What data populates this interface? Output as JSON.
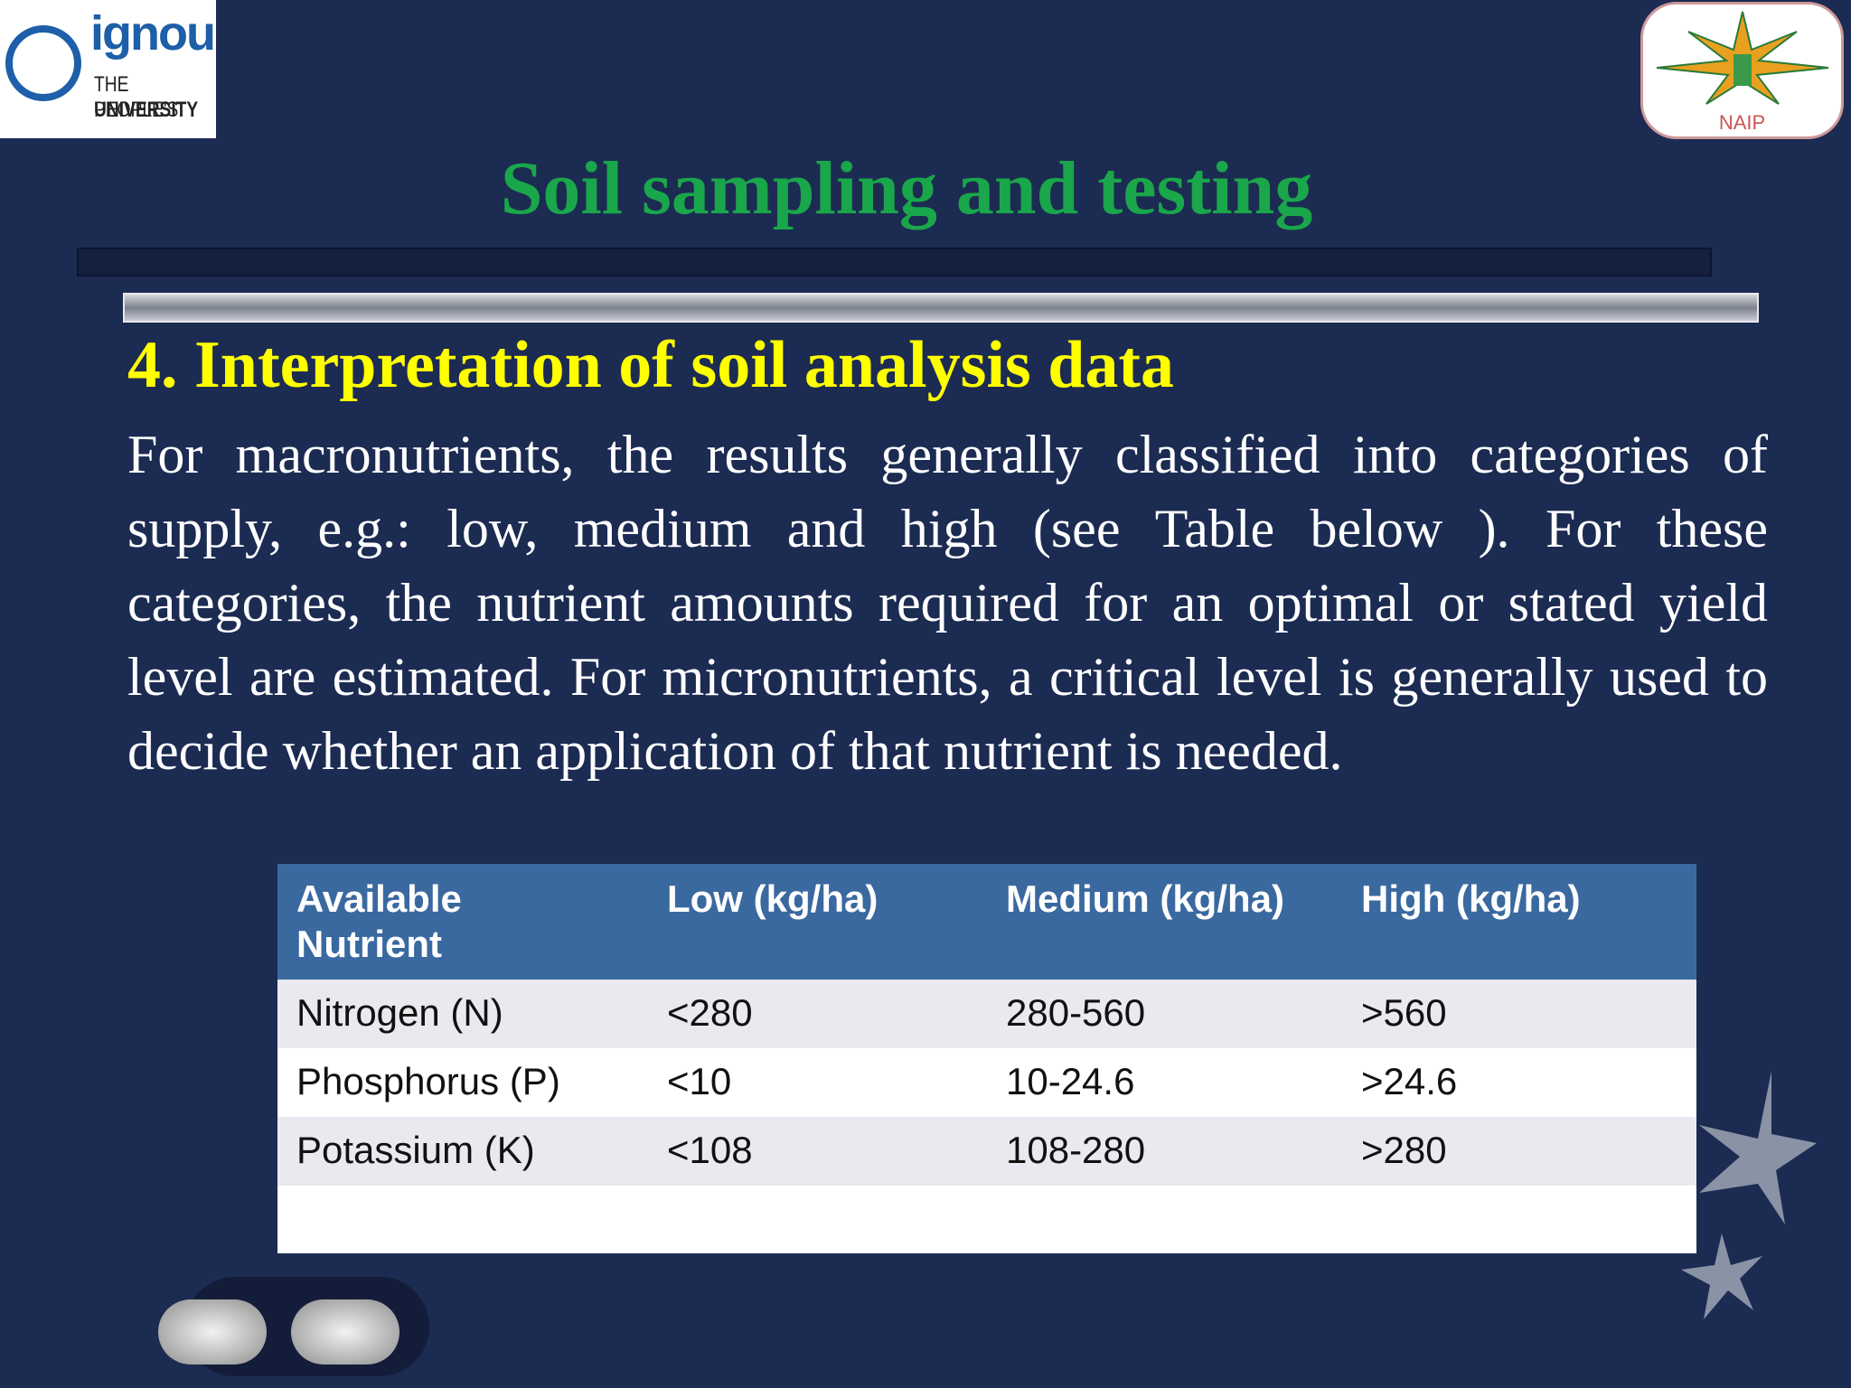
{
  "logos": {
    "left": {
      "name": "ignou",
      "line1": "THE PEOPLE'S",
      "line2": "UNIVERSITY"
    },
    "right": {
      "name": "NAIP"
    }
  },
  "header": {
    "title": "Soil sampling and testing"
  },
  "section": {
    "heading": "4. Interpretation of soil analysis data",
    "paragraph": "For macronutrients, the results generally classified into categories of supply, e.g.: low, medium and high (see Table below ). For these categories, the nutrient amounts required for an optimal or stated yield level are estimated. For micronutrients, a critical level is generally used to decide whether an application of that nutrient is needed."
  },
  "table": {
    "columns": [
      "Available Nutrient",
      "Low (kg/ha)",
      "Medium (kg/ha)",
      "High (kg/ha)"
    ],
    "rows": [
      [
        "Nitrogen (N)",
        "<280",
        "280-560",
        ">560"
      ],
      [
        "Phosphorus (P)",
        "<10",
        "10-24.6",
        ">24.6"
      ],
      [
        "Potassium (K)",
        "<108",
        "108-280",
        ">280"
      ]
    ]
  }
}
